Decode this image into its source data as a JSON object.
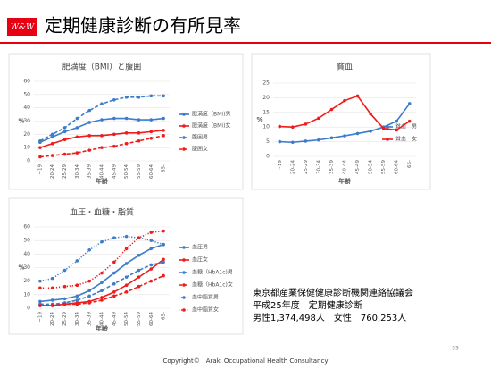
{
  "slide": {
    "logo": "W&W",
    "title": "定期健康診断の有所見率",
    "source": [
      "東京都産業保健健康診断機関連絡協議会",
      "平成25年度　定期健康診断",
      "男性1,374,498人　女性　760,253人"
    ],
    "page": "33",
    "copyright": "Copyright©　Araki Occupational Health Consultancy"
  },
  "chart_data": [
    {
      "type": "line",
      "title": "肥満度（BMI）と腹囲",
      "y_label": "%",
      "x_label": "年齢",
      "categories": [
        "~19",
        "20-24",
        "25-29",
        "30-34",
        "35-39",
        "40-44",
        "45-49",
        "50-54",
        "55-59",
        "60-64",
        "65-"
      ],
      "ylim": [
        0,
        60
      ],
      "yticks": [
        0,
        10,
        20,
        30,
        40,
        50,
        60
      ],
      "grid": true,
      "legend": "right",
      "series": [
        {
          "name": "肥満度（BMI)男",
          "color": "#3d7cc9",
          "dash": "solid",
          "values": [
            14,
            18,
            22,
            25,
            29,
            31,
            32,
            32,
            31,
            31,
            32
          ]
        },
        {
          "name": "肥満度（BMI)女",
          "color": "#ee1c1c",
          "dash": "solid",
          "values": [
            10,
            13,
            16,
            18,
            19,
            19,
            20,
            21,
            21,
            22,
            23
          ]
        },
        {
          "name": "腹囲男",
          "color": "#3d7cc9",
          "dash": "dashed",
          "values": [
            15,
            20,
            25,
            32,
            38,
            43,
            46,
            48,
            48,
            49,
            49
          ]
        },
        {
          "name": "腹囲女",
          "color": "#ee1c1c",
          "dash": "dashed",
          "values": [
            3,
            4,
            5,
            6,
            8,
            10,
            11,
            13,
            15,
            17,
            19
          ]
        }
      ]
    },
    {
      "type": "line",
      "title": "貧血",
      "y_label": "%",
      "x_label": "年齢",
      "categories": [
        "~19",
        "20-24",
        "25-29",
        "30-34",
        "35-39",
        "40-44",
        "45-49",
        "50-54",
        "55-59",
        "60-64",
        "65-"
      ],
      "ylim": [
        0,
        25
      ],
      "yticks": [
        0,
        5,
        10,
        15,
        20,
        25
      ],
      "grid": true,
      "legend": "bottom-right",
      "series": [
        {
          "name": "貧血　男",
          "color": "#3d7cc9",
          "dash": "solid",
          "values": [
            5,
            4.8,
            5.2,
            5.6,
            6.3,
            7,
            7.8,
            8.6,
            10,
            12,
            18
          ]
        },
        {
          "name": "貧血　女",
          "color": "#ee1c1c",
          "dash": "solid",
          "values": [
            10.2,
            10,
            11,
            13,
            16,
            19,
            20.6,
            14.5,
            9.5,
            9,
            12
          ]
        }
      ]
    },
    {
      "type": "line",
      "title": "血圧・血糖・脂質",
      "y_label": "%",
      "x_label": "年齢",
      "categories": [
        "~19",
        "20-24",
        "25-29",
        "30-34",
        "35-39",
        "40-44",
        "45-49",
        "50-54",
        "55-59",
        "60-64",
        "65-"
      ],
      "ylim": [
        0,
        60
      ],
      "yticks": [
        0,
        10,
        20,
        30,
        40,
        50,
        60
      ],
      "grid": true,
      "legend": "right",
      "series": [
        {
          "name": "血圧男",
          "color": "#3d7cc9",
          "dash": "solid",
          "values": [
            5,
            6,
            7,
            9,
            13,
            19,
            26,
            33,
            39,
            44,
            47
          ]
        },
        {
          "name": "血圧女",
          "color": "#ee1c1c",
          "dash": "solid",
          "values": [
            2,
            2,
            3,
            4,
            5,
            8,
            12,
            17,
            23,
            29,
            36
          ]
        },
        {
          "name": "血糖（HbA1c)男",
          "color": "#3d7cc9",
          "dash": "dashed",
          "values": [
            3,
            3,
            4,
            6,
            9,
            13,
            18,
            23,
            28,
            32,
            34
          ]
        },
        {
          "name": "血糖（HbA1c)女",
          "color": "#ee1c1c",
          "dash": "dashed",
          "values": [
            2,
            2,
            3,
            3,
            4,
            6,
            9,
            12,
            16,
            20,
            24
          ]
        },
        {
          "name": "血中脂質男",
          "color": "#3d7cc9",
          "dash": "dotted",
          "values": [
            20,
            22,
            28,
            35,
            43,
            49,
            52,
            53,
            52,
            50,
            47
          ]
        },
        {
          "name": "血中脂質女",
          "color": "#ee1c1c",
          "dash": "dotted",
          "values": [
            15,
            15,
            16,
            17,
            20,
            26,
            34,
            44,
            52,
            56,
            57
          ]
        }
      ]
    }
  ]
}
